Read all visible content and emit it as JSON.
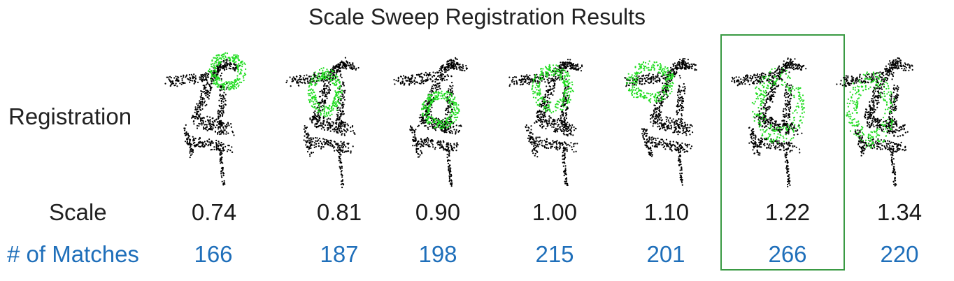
{
  "title": "Scale Sweep Registration Results",
  "row_labels": {
    "registration": "Registration",
    "scale": "Scale",
    "matches": "# of Matches"
  },
  "colors": {
    "target_cloud": "#000000",
    "source_cloud": "#22dd22",
    "matches_text": "#1f6fba",
    "best_box": "#3a9a43"
  },
  "columns": [
    {
      "scale": "0.74",
      "matches": "166",
      "best": false
    },
    {
      "scale": "0.81",
      "matches": "187",
      "best": false
    },
    {
      "scale": "0.90",
      "matches": "198",
      "best": false
    },
    {
      "scale": "1.00",
      "matches": "215",
      "best": false
    },
    {
      "scale": "1.10",
      "matches": "201",
      "best": false
    },
    {
      "scale": "1.22",
      "matches": "266",
      "best": true
    },
    {
      "scale": "1.34",
      "matches": "220",
      "best": false
    }
  ]
}
